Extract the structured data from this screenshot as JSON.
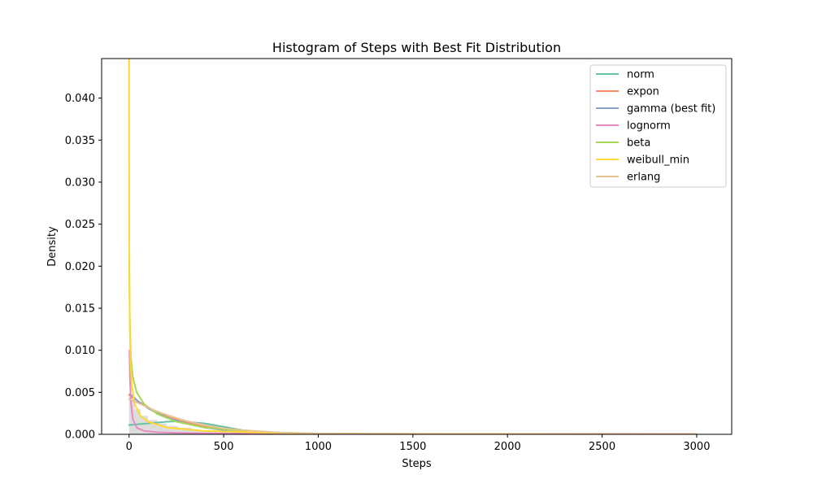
{
  "chart_data": {
    "type": "line",
    "title": "Histogram of Steps with Best Fit Distribution",
    "xlabel": "Steps",
    "ylabel": "Density",
    "xlim": [
      -145,
      3185
    ],
    "ylim": [
      0,
      0.0447
    ],
    "xticks": [
      0,
      500,
      1000,
      1500,
      2000,
      2500,
      3000
    ],
    "xtick_labels": [
      "0",
      "500",
      "1000",
      "1500",
      "2000",
      "2500",
      "3000"
    ],
    "yticks": [
      0,
      0.005,
      0.01,
      0.015,
      0.02,
      0.025,
      0.03,
      0.035,
      0.04
    ],
    "ytick_labels": [
      "0.000",
      "0.005",
      "0.010",
      "0.015",
      "0.020",
      "0.025",
      "0.030",
      "0.035",
      "0.040"
    ],
    "grid": false,
    "legend_position": "top-right",
    "histogram": {
      "color": "#bbbbbb",
      "bins": [
        {
          "x0": 0,
          "x1": 30,
          "y": 0.0045
        },
        {
          "x0": 30,
          "x1": 60,
          "y": 0.003
        },
        {
          "x0": 60,
          "x1": 100,
          "y": 0.0022
        },
        {
          "x0": 100,
          "x1": 150,
          "y": 0.0017
        },
        {
          "x0": 150,
          "x1": 200,
          "y": 0.0013
        },
        {
          "x0": 200,
          "x1": 260,
          "y": 0.001
        },
        {
          "x0": 260,
          "x1": 330,
          "y": 0.0008
        },
        {
          "x0": 330,
          "x1": 420,
          "y": 0.0005
        },
        {
          "x0": 420,
          "x1": 520,
          "y": 0.0003
        },
        {
          "x0": 520,
          "x1": 640,
          "y": 0.0002
        },
        {
          "x0": 640,
          "x1": 800,
          "y": 0.0001
        }
      ]
    },
    "series": [
      {
        "name": "norm",
        "color": "#66c2a5",
        "x": [
          0,
          100,
          200,
          250,
          300,
          400,
          500,
          600,
          700,
          800,
          1000,
          1500,
          2000,
          2500,
          3000
        ],
        "y": [
          0.0011,
          0.0013,
          0.0015,
          0.00155,
          0.0015,
          0.0013,
          0.0009,
          0.0005,
          0.0002,
          0.0001,
          3e-05,
          0,
          0,
          0,
          0
        ]
      },
      {
        "name": "expon",
        "color": "#fc8d62",
        "x": [
          0,
          50,
          100,
          150,
          200,
          300,
          400,
          500,
          600,
          800,
          1000,
          1500,
          2000,
          3000
        ],
        "y": [
          0.0047,
          0.0039,
          0.0032,
          0.0026,
          0.0021,
          0.0014,
          0.0009,
          0.0006,
          0.0004,
          0.00017,
          7e-05,
          1e-05,
          0,
          0
        ]
      },
      {
        "name": "gamma (best fit)",
        "color": "#8da0cb",
        "x": [
          5,
          20,
          50,
          100,
          150,
          200,
          300,
          400,
          500,
          600,
          800,
          1000,
          1500,
          2000,
          3000
        ],
        "y": [
          0.0048,
          0.0045,
          0.0039,
          0.0031,
          0.0025,
          0.002,
          0.0013,
          0.0008,
          0.0005,
          0.0003,
          0.0001,
          4e-05,
          1e-05,
          0,
          0
        ]
      },
      {
        "name": "lognorm",
        "color": "#e78ac3",
        "x": [
          2,
          5,
          10,
          20,
          40,
          80,
          150,
          250,
          400,
          600,
          1000,
          1500,
          2000,
          3000
        ],
        "y": [
          0.01,
          0.0065,
          0.0038,
          0.0018,
          0.0008,
          0.0004,
          0.00025,
          0.00017,
          0.00012,
          0.0001,
          8e-05,
          6e-05,
          5e-05,
          4e-05
        ]
      },
      {
        "name": "beta",
        "color": "#a6d854",
        "x": [
          1,
          3,
          6,
          10,
          20,
          40,
          80,
          150,
          250,
          400,
          600,
          800,
          1000,
          1500,
          2000,
          3000
        ],
        "y": [
          0.021,
          0.015,
          0.0115,
          0.009,
          0.0068,
          0.005,
          0.0036,
          0.0024,
          0.0015,
          0.0008,
          0.0004,
          0.0002,
          0.0001,
          3e-05,
          1e-05,
          0
        ]
      },
      {
        "name": "weibull_min",
        "color": "#ffd92f",
        "x": [
          0.2,
          0.5,
          1,
          2,
          4,
          8,
          15,
          30,
          60,
          100,
          200,
          400,
          700,
          1000,
          1500,
          2000,
          3000
        ],
        "y": [
          0.0447,
          0.034,
          0.025,
          0.018,
          0.0125,
          0.0085,
          0.0058,
          0.0036,
          0.0022,
          0.0015,
          0.0008,
          0.0004,
          0.0002,
          0.0001,
          5e-05,
          3e-05,
          1e-05
        ]
      },
      {
        "name": "erlang",
        "color": "#e5c494",
        "x": [
          0,
          50,
          100,
          150,
          200,
          300,
          400,
          500,
          600,
          800,
          1000,
          1500,
          2000,
          3000
        ],
        "y": [
          0.0042,
          0.0037,
          0.0032,
          0.0027,
          0.0023,
          0.0016,
          0.0011,
          0.0007,
          0.0005,
          0.0002,
          0.0001,
          2e-05,
          0,
          0
        ]
      }
    ]
  }
}
